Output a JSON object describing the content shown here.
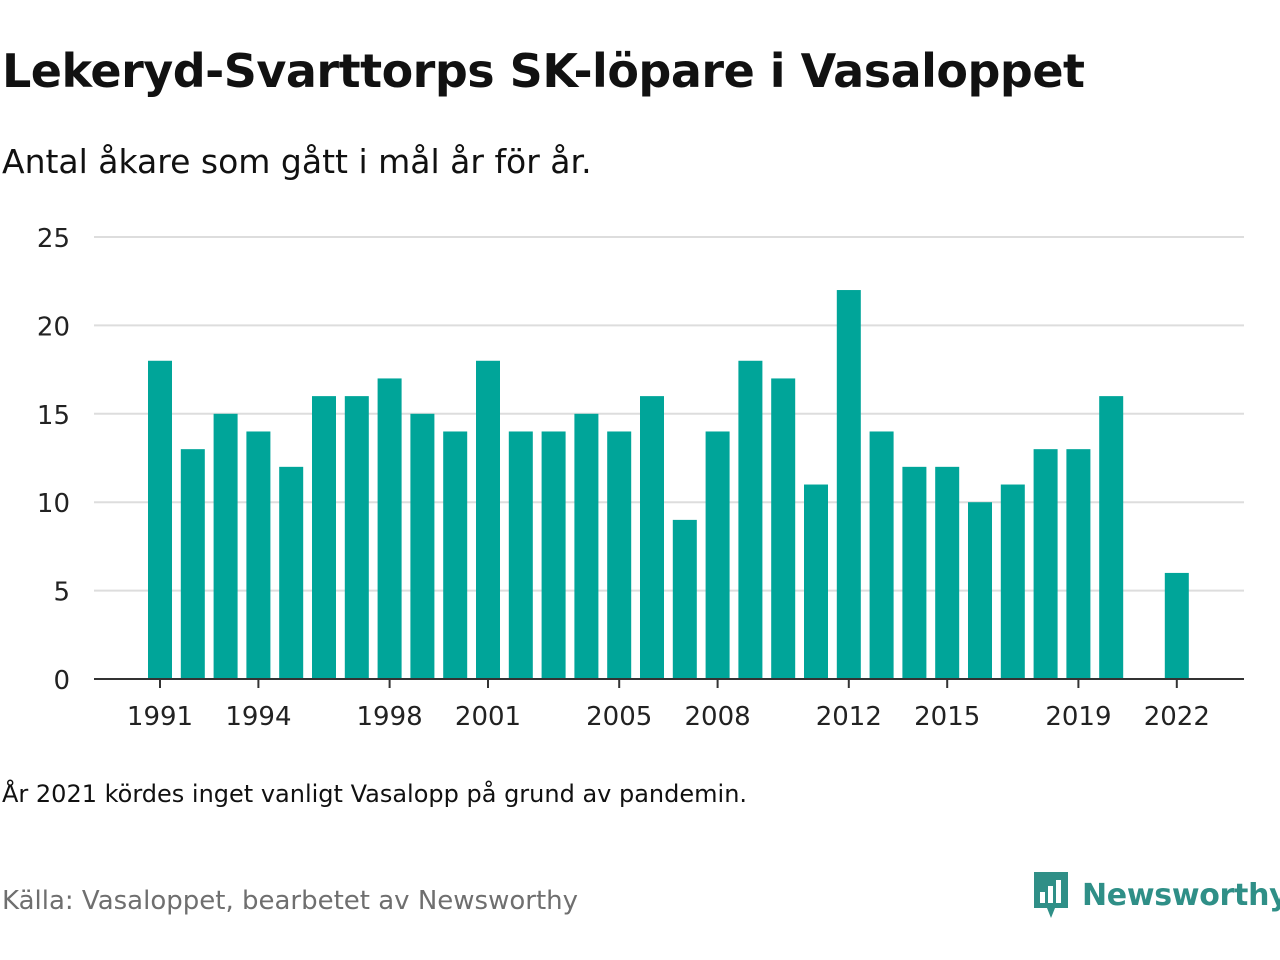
{
  "header": {
    "title": "Lekeryd-Svarttorps SK-löpare i Vasaloppet",
    "subtitle": "Antal åkare som gått i mål år för år."
  },
  "footer": {
    "note": "År 2021 kördes inget vanligt Vasalopp på grund av pandemin.",
    "source": "Källa: Vasaloppet, bearbetet av Newsworthy",
    "brand": "Newsworthy",
    "brand_color": "#2f8f87",
    "brand_icon": "newsworthy-logo-icon"
  },
  "chart_data": {
    "type": "bar",
    "categories": [
      1991,
      1992,
      1993,
      1994,
      1995,
      1996,
      1997,
      1998,
      1999,
      2000,
      2001,
      2002,
      2003,
      2004,
      2005,
      2006,
      2007,
      2008,
      2009,
      2010,
      2011,
      2012,
      2013,
      2014,
      2015,
      2016,
      2017,
      2018,
      2019,
      2020,
      2021,
      2022
    ],
    "values": [
      18,
      13,
      15,
      14,
      12,
      16,
      16,
      17,
      15,
      14,
      18,
      14,
      14,
      15,
      14,
      16,
      9,
      14,
      18,
      17,
      11,
      22,
      14,
      12,
      12,
      10,
      11,
      13,
      13,
      16,
      null,
      6
    ],
    "x_tick_labels": [
      "1991",
      "1994",
      "1998",
      "2001",
      "2005",
      "2008",
      "2012",
      "2015",
      "2019",
      "2022"
    ],
    "y_ticks": [
      0,
      5,
      10,
      15,
      20,
      25
    ],
    "ylim": [
      0,
      25
    ],
    "xlabel": "",
    "ylabel": "",
    "grid": true,
    "bar_color": "#00a599"
  }
}
